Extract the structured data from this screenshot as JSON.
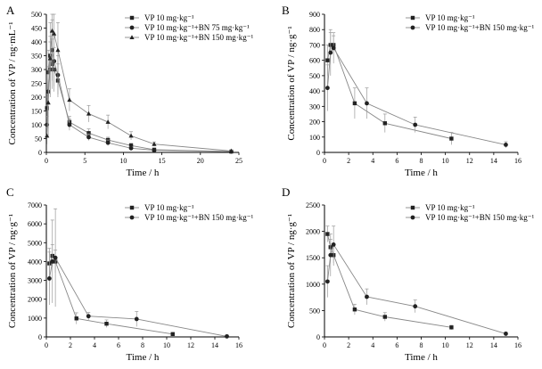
{
  "chart_data": [
    {
      "type": "line",
      "panel_label": "A",
      "xlabel": "Time / h",
      "ylabel": "Concentration of VP / ng·mL⁻¹",
      "xlim": [
        0,
        25
      ],
      "ylim": [
        0,
        500
      ],
      "xticks": [
        0,
        5,
        10,
        15,
        20,
        25
      ],
      "yticks": [
        0,
        50,
        100,
        150,
        200,
        250,
        300,
        350,
        400,
        450,
        500
      ],
      "legend_position": "top-right",
      "series": [
        {
          "name": "VP 10 mg·kg⁻¹",
          "marker": "square",
          "x": [
            0.08,
            0.25,
            0.5,
            0.75,
            1,
            1.5,
            3,
            5.5,
            8,
            11,
            14,
            24
          ],
          "y": [
            160,
            290,
            350,
            320,
            300,
            260,
            110,
            70,
            45,
            25,
            10,
            3
          ],
          "err": [
            40,
            80,
            70,
            90,
            80,
            60,
            20,
            15,
            10,
            8,
            5,
            2
          ]
        },
        {
          "name": "VP 10 mg·kg⁻¹+BN 75 mg·kg⁻¹",
          "marker": "circle",
          "x": [
            0.08,
            0.25,
            0.5,
            0.75,
            1,
            1.5,
            3,
            5.5,
            8,
            11,
            14,
            24
          ],
          "y": [
            100,
            220,
            300,
            370,
            330,
            280,
            100,
            55,
            35,
            15,
            8,
            3
          ],
          "err": [
            30,
            90,
            100,
            110,
            90,
            70,
            20,
            12,
            10,
            6,
            4,
            2
          ]
        },
        {
          "name": "VP 10 mg·kg⁻¹+BN 150 mg·kg⁻¹",
          "marker": "triangle",
          "x": [
            0.08,
            0.25,
            0.5,
            0.75,
            1,
            1.5,
            3,
            5.5,
            8,
            11,
            14,
            24
          ],
          "y": [
            60,
            180,
            340,
            440,
            430,
            370,
            190,
            140,
            110,
            60,
            30,
            5
          ],
          "err": [
            30,
            120,
            130,
            170,
            130,
            100,
            40,
            30,
            25,
            15,
            8,
            3
          ]
        }
      ]
    },
    {
      "type": "line",
      "panel_label": "B",
      "xlabel": "Time / h",
      "ylabel": "Concentration of VP / ng·g⁻¹",
      "xlim": [
        0,
        16
      ],
      "ylim": [
        0,
        900
      ],
      "xticks": [
        0,
        2,
        4,
        6,
        8,
        10,
        12,
        14,
        16
      ],
      "yticks": [
        0,
        100,
        200,
        300,
        400,
        500,
        600,
        700,
        800,
        900
      ],
      "legend_position": "top-right",
      "series": [
        {
          "name": "VP 10 mg·kg⁻¹",
          "marker": "square",
          "x": [
            0.25,
            0.5,
            0.75,
            2.5,
            5,
            10.5
          ],
          "y": [
            600,
            700,
            700,
            320,
            190,
            90
          ],
          "err": [
            100,
            80,
            60,
            100,
            60,
            40
          ]
        },
        {
          "name": "VP 10 mg·kg⁻¹+BN 150 mg·kg⁻¹",
          "marker": "circle",
          "x": [
            0.25,
            0.5,
            0.75,
            3.5,
            7.5,
            15
          ],
          "y": [
            420,
            650,
            680,
            320,
            180,
            50
          ],
          "err": [
            150,
            150,
            100,
            100,
            50,
            20
          ]
        }
      ]
    },
    {
      "type": "line",
      "panel_label": "C",
      "xlabel": "Time / h",
      "ylabel": "Concentration of VP / ng·g⁻¹",
      "xlim": [
        0,
        16
      ],
      "ylim": [
        0,
        7000
      ],
      "xticks": [
        0,
        2,
        4,
        6,
        8,
        10,
        12,
        14,
        16
      ],
      "yticks": [
        0,
        1000,
        2000,
        3000,
        4000,
        5000,
        6000,
        7000
      ],
      "legend_position": "top-right",
      "series": [
        {
          "name": "VP 10 mg·kg⁻¹",
          "marker": "square",
          "x": [
            0.25,
            0.5,
            0.75,
            2.5,
            5,
            10.5
          ],
          "y": [
            3900,
            4300,
            4000,
            980,
            700,
            150
          ],
          "err": [
            800,
            600,
            600,
            300,
            200,
            80
          ]
        },
        {
          "name": "VP 10 mg·kg⁻¹+BN 150 mg·kg⁻¹",
          "marker": "circle",
          "x": [
            0.25,
            0.5,
            0.75,
            3.5,
            7.5,
            15
          ],
          "y": [
            3100,
            4000,
            4200,
            1100,
            950,
            30
          ],
          "err": [
            1400,
            2200,
            2600,
            200,
            400,
            20
          ]
        }
      ]
    },
    {
      "type": "line",
      "panel_label": "D",
      "xlabel": "Time / h",
      "ylabel": "Concentration of VP / ng·g⁻¹",
      "xlim": [
        0,
        16
      ],
      "ylim": [
        0,
        2500
      ],
      "xticks": [
        0,
        2,
        4,
        6,
        8,
        10,
        12,
        14,
        16
      ],
      "yticks": [
        0,
        500,
        1000,
        1500,
        2000,
        2500
      ],
      "legend_position": "top-right",
      "series": [
        {
          "name": "VP 10 mg·kg⁻¹",
          "marker": "square",
          "x": [
            0.25,
            0.5,
            0.75,
            2.5,
            5,
            10.5
          ],
          "y": [
            1950,
            1700,
            1550,
            520,
            380,
            180
          ],
          "err": [
            150,
            150,
            200,
            100,
            80,
            40
          ]
        },
        {
          "name": "VP 10 mg·kg⁻¹+BN 150 mg·kg⁻¹",
          "marker": "circle",
          "x": [
            0.25,
            0.5,
            0.75,
            3.5,
            7.5,
            15
          ],
          "y": [
            1050,
            1550,
            1750,
            760,
            580,
            60
          ],
          "err": [
            300,
            400,
            350,
            150,
            120,
            30
          ]
        }
      ]
    }
  ]
}
